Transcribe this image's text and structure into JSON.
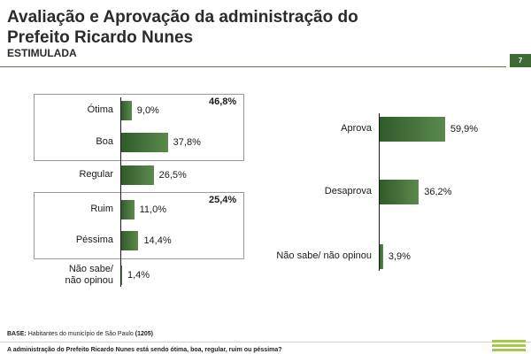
{
  "header": {
    "title": "Avaliação e Aprovação da administração do Prefeito Ricardo Nunes",
    "subtitle": "ESTIMULADA",
    "page_number": "7"
  },
  "chart_data": [
    {
      "type": "bar",
      "orientation": "horizontal",
      "categories": [
        "Ótima",
        "Boa",
        "Regular",
        "Ruim",
        "Péssima",
        "Não sabe/ não opinou"
      ],
      "values": [
        9.0,
        37.8,
        26.5,
        11.0,
        14.4,
        1.4
      ],
      "value_labels": [
        "9,0%",
        "37,8%",
        "26,5%",
        "11,0%",
        "14,4%",
        "1,4%"
      ],
      "groups": [
        {
          "members": [
            "Ótima",
            "Boa"
          ],
          "total_label": "46,8%"
        },
        {
          "members": [
            "Ruim",
            "Péssima"
          ],
          "total_label": "25,4%"
        }
      ],
      "unit": "%"
    },
    {
      "type": "bar",
      "orientation": "horizontal",
      "categories": [
        "Aprova",
        "Desaprova",
        "Não sabe/ não opinou"
      ],
      "values": [
        59.9,
        36.2,
        3.9
      ],
      "value_labels": [
        "59,9%",
        "36,2%",
        "3,9%"
      ],
      "unit": "%"
    }
  ],
  "footer": {
    "base_label": "BASE:",
    "base_text": "Habitantes do município de São Paulo",
    "base_n": "(1205)",
    "question": "A administração do Prefeito Ricardo Nunes está sendo ótima, boa, regular, ruim ou péssima?"
  },
  "colors": {
    "bar_dark": "#2f5a2a",
    "bar_light": "#5b8a4c",
    "accent": "#3f6a34",
    "logo": "#a6c84b"
  }
}
